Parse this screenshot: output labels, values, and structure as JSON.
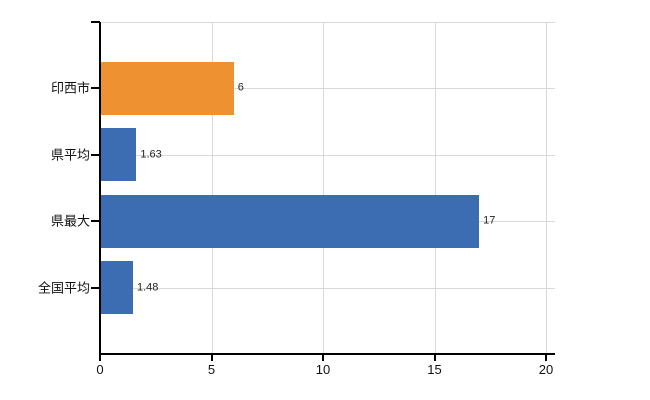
{
  "chart_data": {
    "type": "bar",
    "orientation": "horizontal",
    "title": "",
    "xlabel": "",
    "ylabel": "",
    "categories": [
      "印西市",
      "県平均",
      "県最大",
      "全国平均"
    ],
    "values": [
      6,
      1.63,
      17,
      1.48
    ],
    "value_labels": [
      "6",
      "1.63",
      "17",
      "1.48"
    ],
    "bar_colors": [
      "#EE9130",
      "#3C6DB2",
      "#3C6DB2",
      "#3C6DB2"
    ],
    "x_ticks": [
      0,
      5,
      10,
      15,
      20
    ],
    "x_tick_labels": [
      "0",
      "5",
      "10",
      "15",
      "20"
    ],
    "xlim": [
      0,
      20.4
    ],
    "grid": true,
    "legend": "none",
    "colors": {
      "background": "#ffffff",
      "grid": "#D9D9D9",
      "axis": "#000000",
      "category_label": "#111111",
      "tick_label": "#111111",
      "value_label": "#222222",
      "accent_orange": "#EE9130",
      "accent_blue": "#3C6DB2"
    }
  }
}
